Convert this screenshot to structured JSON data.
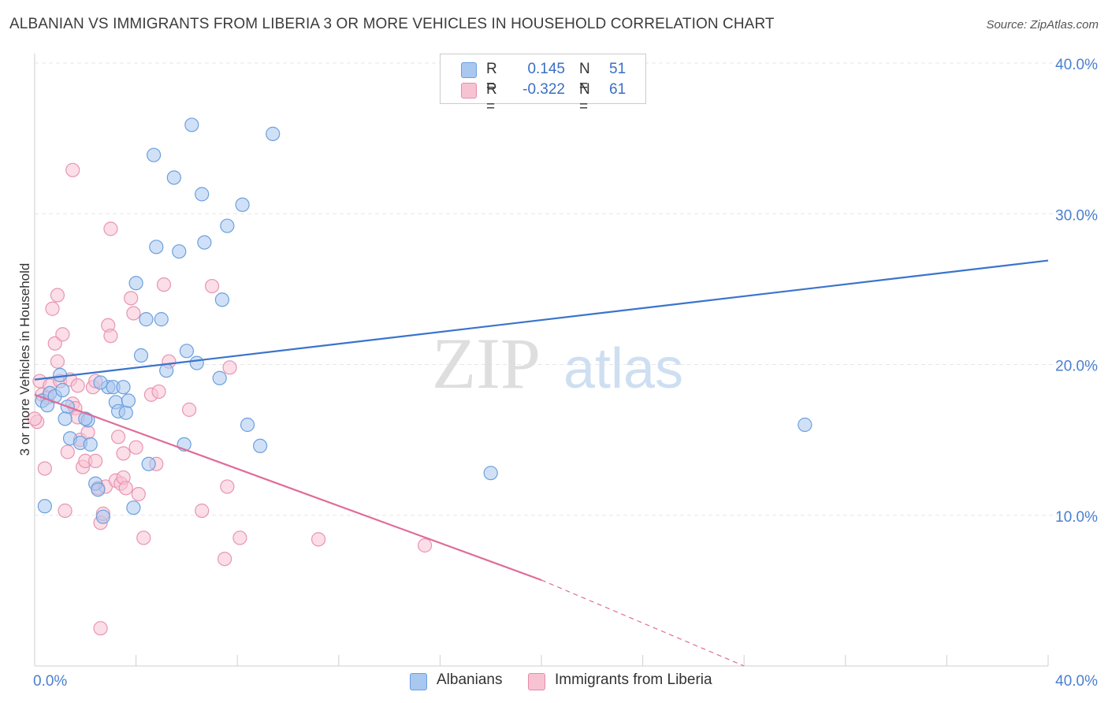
{
  "title": "ALBANIAN VS IMMIGRANTS FROM LIBERIA 3 OR MORE VEHICLES IN HOUSEHOLD CORRELATION CHART",
  "source": "Source: ZipAtlas.com",
  "watermark": {
    "zip": "ZIP",
    "atlas": "atlas"
  },
  "legend_top": [
    {
      "r_label": "R =",
      "r_value": "0.145",
      "n_label": "N =",
      "n_value": "51",
      "color": "#a9c8f0",
      "border": "#6a9ee0"
    },
    {
      "r_label": "R =",
      "r_value": "-0.322",
      "n_label": "N =",
      "n_value": "61",
      "color": "#f7c3d3",
      "border": "#e88aa8"
    }
  ],
  "colors": {
    "blue_fill": "#a9c8f0",
    "blue_stroke": "#6d9fde",
    "blue_line": "#3a74cc",
    "pink_fill": "#f7c3d3",
    "pink_stroke": "#e895b1",
    "pink_line": "#e06b98",
    "tick_blue": "#4a7fd0"
  },
  "chart_data": {
    "type": "scatter",
    "title": "ALBANIAN VS IMMIGRANTS FROM LIBERIA 3 OR MORE VEHICLES IN HOUSEHOLD CORRELATION CHART",
    "xlabel": "",
    "ylabel": "3 or more Vehicles in Household",
    "xlim": [
      0,
      40
    ],
    "ylim": [
      0,
      40
    ],
    "x_tick_labels": [
      "0.0%",
      "40.0%"
    ],
    "y_ticks": [
      10,
      20,
      30,
      40
    ],
    "y_tick_labels": [
      "10.0%",
      "20.0%",
      "30.0%",
      "40.0%"
    ],
    "legend": [
      "Albanians",
      "Immigrants from Liberia"
    ],
    "series": [
      {
        "name": "Albanians",
        "r": 0.145,
        "n": 51,
        "trend": {
          "x": [
            0,
            40
          ],
          "y": [
            19.0,
            26.9
          ],
          "dashed_from_x": null
        },
        "points": [
          [
            0.3,
            17.6
          ],
          [
            0.5,
            17.3
          ],
          [
            0.6,
            18.1
          ],
          [
            0.8,
            17.9
          ],
          [
            1.0,
            19.3
          ],
          [
            1.1,
            18.3
          ],
          [
            1.3,
            17.2
          ],
          [
            1.2,
            16.4
          ],
          [
            1.4,
            15.1
          ],
          [
            0.4,
            10.6
          ],
          [
            1.8,
            14.8
          ],
          [
            2.1,
            16.3
          ],
          [
            2.2,
            14.7
          ],
          [
            2.4,
            12.1
          ],
          [
            2.5,
            11.7
          ],
          [
            2.7,
            9.9
          ],
          [
            2.9,
            18.5
          ],
          [
            2.6,
            18.8
          ],
          [
            3.1,
            18.5
          ],
          [
            3.2,
            17.5
          ],
          [
            3.3,
            16.9
          ],
          [
            3.5,
            18.5
          ],
          [
            3.6,
            16.8
          ],
          [
            3.7,
            17.6
          ],
          [
            3.9,
            10.5
          ],
          [
            4.0,
            25.4
          ],
          [
            4.2,
            20.6
          ],
          [
            4.4,
            23.0
          ],
          [
            4.5,
            13.4
          ],
          [
            4.7,
            33.9
          ],
          [
            4.8,
            27.8
          ],
          [
            5.0,
            23.0
          ],
          [
            5.2,
            19.6
          ],
          [
            5.5,
            32.4
          ],
          [
            5.7,
            27.5
          ],
          [
            5.9,
            14.7
          ],
          [
            6.0,
            20.9
          ],
          [
            6.2,
            35.9
          ],
          [
            6.4,
            20.1
          ],
          [
            6.6,
            31.3
          ],
          [
            6.7,
            28.1
          ],
          [
            7.3,
            19.1
          ],
          [
            7.4,
            24.3
          ],
          [
            7.6,
            29.2
          ],
          [
            8.2,
            30.6
          ],
          [
            8.4,
            16.0
          ],
          [
            8.9,
            14.6
          ],
          [
            9.4,
            35.3
          ],
          [
            18.0,
            12.8
          ],
          [
            30.4,
            16.0
          ],
          [
            2.0,
            16.4
          ]
        ]
      },
      {
        "name": "Immigrants from Liberia",
        "r": -0.322,
        "n": 61,
        "trend": {
          "x": [
            0,
            20
          ],
          "y": [
            18.0,
            5.7
          ],
          "dashed_from_x": 20,
          "dashed_to": [
            28.0,
            0.0
          ]
        },
        "points": [
          [
            0.1,
            16.2
          ],
          [
            0.2,
            18.9
          ],
          [
            0.3,
            18.0
          ],
          [
            0.5,
            17.8
          ],
          [
            0.6,
            18.6
          ],
          [
            0.8,
            21.4
          ],
          [
            0.7,
            23.7
          ],
          [
            0.9,
            20.2
          ],
          [
            0.9,
            24.6
          ],
          [
            1.1,
            22.0
          ],
          [
            1.0,
            18.9
          ],
          [
            1.2,
            10.3
          ],
          [
            1.3,
            14.2
          ],
          [
            1.5,
            17.4
          ],
          [
            1.6,
            17.1
          ],
          [
            1.7,
            16.5
          ],
          [
            1.8,
            15.0
          ],
          [
            1.9,
            13.2
          ],
          [
            2.0,
            13.6
          ],
          [
            2.1,
            15.5
          ],
          [
            2.3,
            18.5
          ],
          [
            2.4,
            13.6
          ],
          [
            2.5,
            11.8
          ],
          [
            2.6,
            9.5
          ],
          [
            2.6,
            2.5
          ],
          [
            2.7,
            10.1
          ],
          [
            2.8,
            11.9
          ],
          [
            2.9,
            22.6
          ],
          [
            3.0,
            21.9
          ],
          [
            3.0,
            29.0
          ],
          [
            3.2,
            12.3
          ],
          [
            3.3,
            15.2
          ],
          [
            3.4,
            12.1
          ],
          [
            3.5,
            14.1
          ],
          [
            3.5,
            12.5
          ],
          [
            3.6,
            11.8
          ],
          [
            3.9,
            23.4
          ],
          [
            3.8,
            24.4
          ],
          [
            4.0,
            14.5
          ],
          [
            4.1,
            11.4
          ],
          [
            4.3,
            8.5
          ],
          [
            4.6,
            18.0
          ],
          [
            4.9,
            18.2
          ],
          [
            4.8,
            13.4
          ],
          [
            5.1,
            25.3
          ],
          [
            5.3,
            20.2
          ],
          [
            6.1,
            17.0
          ],
          [
            6.6,
            10.3
          ],
          [
            7.0,
            25.2
          ],
          [
            7.5,
            7.1
          ],
          [
            7.6,
            11.9
          ],
          [
            7.7,
            19.8
          ],
          [
            8.1,
            8.5
          ],
          [
            11.2,
            8.4
          ],
          [
            15.4,
            8.0
          ],
          [
            0.4,
            13.1
          ],
          [
            1.5,
            32.9
          ],
          [
            1.4,
            19.0
          ],
          [
            1.7,
            18.6
          ],
          [
            2.4,
            18.9
          ],
          [
            0.0,
            16.4
          ]
        ]
      }
    ]
  }
}
